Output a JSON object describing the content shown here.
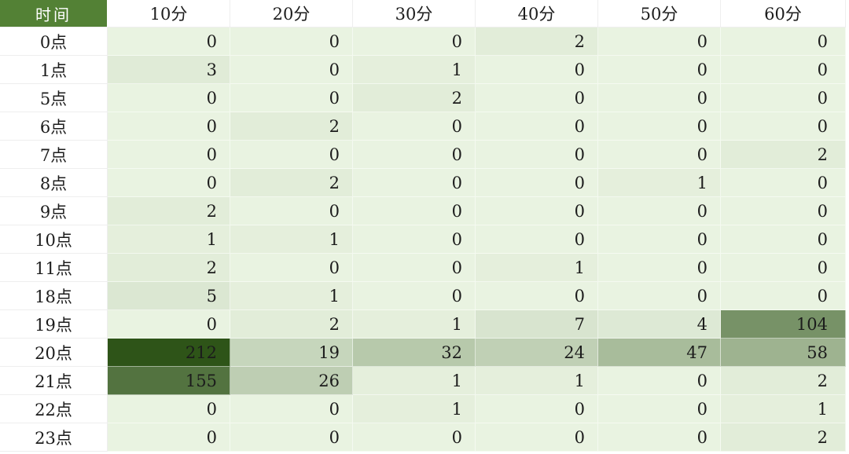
{
  "chart_data": {
    "type": "heatmap",
    "corner_label": "时间",
    "columns": [
      "10分",
      "20分",
      "30分",
      "40分",
      "50分",
      "60分"
    ],
    "rows": [
      "0点",
      "1点",
      "5点",
      "6点",
      "7点",
      "8点",
      "9点",
      "10点",
      "11点",
      "18点",
      "19点",
      "20点",
      "21点",
      "22点",
      "23点"
    ],
    "values": [
      [
        0,
        0,
        0,
        2,
        0,
        0
      ],
      [
        3,
        0,
        1,
        0,
        0,
        0
      ],
      [
        0,
        0,
        2,
        0,
        0,
        0
      ],
      [
        0,
        2,
        0,
        0,
        0,
        0
      ],
      [
        0,
        0,
        0,
        0,
        0,
        2
      ],
      [
        0,
        2,
        0,
        0,
        1,
        0
      ],
      [
        2,
        0,
        0,
        0,
        0,
        0
      ],
      [
        1,
        1,
        0,
        0,
        0,
        0
      ],
      [
        2,
        0,
        0,
        1,
        0,
        0
      ],
      [
        5,
        1,
        0,
        0,
        0,
        0
      ],
      [
        0,
        2,
        1,
        7,
        4,
        104
      ],
      [
        212,
        19,
        32,
        24,
        47,
        58
      ],
      [
        155,
        26,
        1,
        1,
        0,
        2
      ],
      [
        0,
        0,
        1,
        0,
        0,
        1
      ],
      [
        0,
        0,
        0,
        0,
        0,
        2
      ]
    ],
    "colors": {
      "header_fill": "#538135",
      "header_text": "#ffffff",
      "scale_min": "#e9f3e1",
      "scale_max": "#2e5418",
      "value_text": "#1c1c1c"
    }
  }
}
